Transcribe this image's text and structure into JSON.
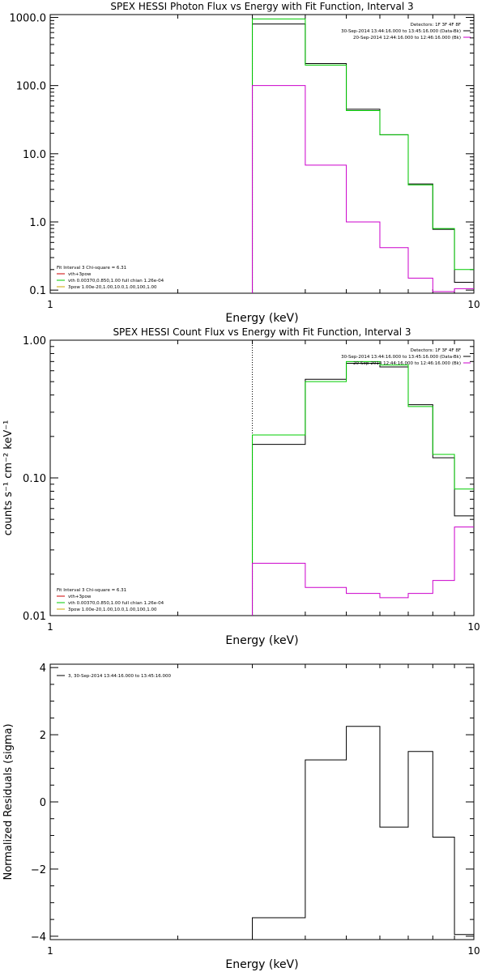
{
  "chart_data": [
    {
      "type": "line",
      "title": "SPEX HESSI Photon Flux vs Energy with Fit Function, Interval 3",
      "xlabel": "Energy (keV)",
      "ylabel": "",
      "xscale": "log",
      "yscale": "log",
      "xlim": [
        1,
        10
      ],
      "ylim": [
        0.09,
        1100
      ],
      "x_ticks": [
        "1",
        "10"
      ],
      "y_ticks": [
        {
          "value": 0.1,
          "label": "0.1"
        },
        {
          "value": 1,
          "label": "1.0"
        },
        {
          "value": 10,
          "label": "10.0"
        },
        {
          "value": 100,
          "label": "100.0"
        },
        {
          "value": 1000,
          "label": "1000.0"
        }
      ],
      "vline_x": 3,
      "bin_edges": [
        3,
        4,
        5,
        6,
        7,
        8,
        9,
        10
      ],
      "series": [
        {
          "color": "#000000",
          "values": [
            800,
            210,
            45,
            19,
            3.6,
            0.78,
            0.13
          ]
        },
        {
          "color": "#00cc00",
          "values": [
            950,
            200,
            43,
            19,
            3.5,
            0.8,
            0.2
          ]
        },
        {
          "color": "#cc00cc",
          "values": [
            100,
            6.8,
            1.0,
            0.42,
            0.15,
            0.095,
            0.105
          ]
        }
      ],
      "legend_top_right": [
        {
          "text": "Detectors: 1F 3F 4F 8F",
          "color": null
        },
        {
          "text": "30-Sep-2014 13:44:16.000 to 13:45:16.000 (Data-Bk)",
          "color": "#000000"
        },
        {
          "text": "20-Sep-2014 12:44:16.000 to 12:46:16.000 (Bk)",
          "color": "#cc00cc"
        }
      ],
      "legend_bottom_left": [
        {
          "text": "Fit Interval 3   Chi-square = 6.31",
          "color": null
        },
        {
          "text": "vth+3pow",
          "color": "#cc0000"
        },
        {
          "text": "vth 0.00370,0.850,1.00  full chian 1.26e-04",
          "color": "#00cc00"
        },
        {
          "text": "3pow 1.00e-20,1.00,10.0,1.00,100,1.00",
          "color": "#ccaa00"
        }
      ]
    },
    {
      "type": "line",
      "title": "SPEX HESSI Count Flux vs Energy with Fit Function, Interval 3",
      "xlabel": "Energy (keV)",
      "ylabel": "counts s⁻¹ cm⁻² keV⁻¹",
      "xscale": "log",
      "yscale": "log",
      "xlim": [
        1,
        10
      ],
      "ylim": [
        0.01,
        1.0
      ],
      "x_ticks": [
        "1",
        "10"
      ],
      "y_ticks": [
        {
          "value": 0.01,
          "label": "0.01"
        },
        {
          "value": 0.1,
          "label": "0.10"
        },
        {
          "value": 1,
          "label": "1.00"
        }
      ],
      "vline_x": 3,
      "bin_edges": [
        3,
        4,
        5,
        6,
        7,
        8,
        9,
        10
      ],
      "series": [
        {
          "color": "#000000",
          "values": [
            0.175,
            0.52,
            0.68,
            0.64,
            0.34,
            0.14,
            0.053
          ]
        },
        {
          "color": "#00cc00",
          "values": [
            0.205,
            0.5,
            0.7,
            0.66,
            0.33,
            0.148,
            0.083
          ]
        },
        {
          "color": "#cc00cc",
          "values": [
            0.024,
            0.016,
            0.0145,
            0.0135,
            0.0145,
            0.018,
            0.044
          ]
        }
      ],
      "legend_top_right": [
        {
          "text": "Detectors: 1F 3F 4F 8F",
          "color": null
        },
        {
          "text": "30-Sep-2014 13:44:16.000 to 13:45:16.000 (Data-Bk)",
          "color": "#000000"
        },
        {
          "text": "20-Sep-2014 12:44:16.000 to 12:46:16.000 (Bk)",
          "color": "#cc00cc"
        }
      ],
      "legend_bottom_left": [
        {
          "text": "Fit Interval 3   Chi-square = 6.31",
          "color": null
        },
        {
          "text": "vth+3pow",
          "color": "#cc0000"
        },
        {
          "text": "vth 0.00370,0.850,1.00  full chian 1.26e-04",
          "color": "#00cc00"
        },
        {
          "text": "3pow 1.00e-20,1.00,10.0,1.00,100,1.00",
          "color": "#ccaa00"
        }
      ]
    },
    {
      "type": "line",
      "title": "",
      "xlabel": "Energy (keV)",
      "ylabel": "Normalized Residuals (sigma)",
      "xscale": "log",
      "yscale": "linear",
      "xlim": [
        1,
        10
      ],
      "ylim": [
        -4.1,
        4.1
      ],
      "x_ticks": [
        "1",
        "10"
      ],
      "y_ticks": [
        {
          "value": -4,
          "label": "−4"
        },
        {
          "value": -2,
          "label": "−2"
        },
        {
          "value": 0,
          "label": "0"
        },
        {
          "value": 2,
          "label": "2"
        },
        {
          "value": 4,
          "label": "4"
        }
      ],
      "bin_edges": [
        3,
        4,
        5,
        6,
        7,
        8,
        9,
        10
      ],
      "series": [
        {
          "color": "#000000",
          "values": [
            -3.45,
            1.25,
            2.25,
            -0.75,
            1.5,
            -1.05,
            -3.95
          ]
        }
      ],
      "legend_top_left": [
        {
          "text": "3, 30-Sep-2014 13:44:16.000 to 13:45:16.000",
          "color": "#000000"
        }
      ]
    }
  ]
}
